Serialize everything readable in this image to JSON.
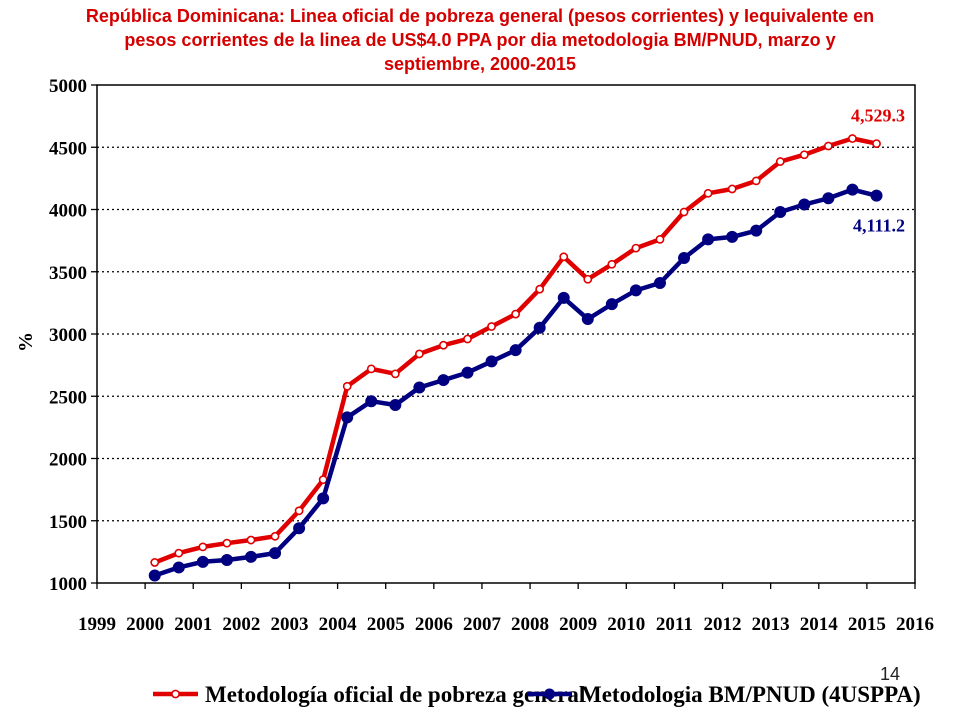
{
  "page_number": "14",
  "chart_data": {
    "type": "line",
    "title_lines": [
      "República Dominicana: Linea oficial de pobreza general  (pesos corrientes) y Iequivalente en",
      "pesos corrientes de la linea de US$4.0 PPA por dia metodologia BM/PNUD, marzo y",
      "septiembre, 2000-2015"
    ],
    "xlabel": "",
    "ylabel": "%",
    "xlim": [
      1999,
      2016
    ],
    "ylim": [
      1000,
      5000
    ],
    "x_ticks": [
      "1999",
      "2000",
      "2001",
      "2002",
      "2003",
      "2004",
      "2005",
      "2006",
      "2007",
      "2008",
      "2009",
      "2010",
      "2011",
      "2012",
      "2013",
      "2014",
      "2015",
      "2016"
    ],
    "y_ticks": [
      "1000",
      "1500",
      "2000",
      "2500",
      "3000",
      "3500",
      "4000",
      "4500",
      "5000"
    ],
    "grid": "horizontal dotted",
    "legend_position": "bottom",
    "x": [
      2000.2,
      2000.7,
      2001.2,
      2001.7,
      2002.2,
      2002.7,
      2003.2,
      2003.7,
      2004.2,
      2004.7,
      2005.2,
      2005.7,
      2006.2,
      2006.7,
      2007.2,
      2007.7,
      2008.2,
      2008.7,
      2009.2,
      2009.7,
      2010.2,
      2010.7,
      2011.2,
      2011.7,
      2012.2,
      2012.7,
      2013.2,
      2013.7,
      2014.2,
      2014.7,
      2015.2
    ],
    "series": [
      {
        "name": "Metodología oficial de pobreza general",
        "color": "#e00000",
        "marker": "open-circle",
        "values": [
          1165,
          1240,
          1290,
          1320,
          1345,
          1375,
          1580,
          1830,
          2580,
          2720,
          2680,
          2840,
          2910,
          2960,
          3060,
          3160,
          3360,
          3620,
          3440,
          3560,
          3690,
          3760,
          3980,
          4130,
          4165,
          4230,
          4385,
          4440,
          4510,
          4570,
          4529.3
        ],
        "end_label": "4,529.3"
      },
      {
        "name": "Metodologia BM/PNUD (4USPPA)",
        "color": "#000080",
        "marker": "filled-circle",
        "values": [
          1060,
          1125,
          1170,
          1185,
          1210,
          1240,
          1440,
          1680,
          2330,
          2460,
          2430,
          2570,
          2630,
          2690,
          2780,
          2870,
          3050,
          3290,
          3120,
          3240,
          3350,
          3410,
          3610,
          3760,
          3780,
          3830,
          3980,
          4040,
          4090,
          4160,
          4111.2
        ],
        "end_label": "4,111.2"
      }
    ]
  }
}
